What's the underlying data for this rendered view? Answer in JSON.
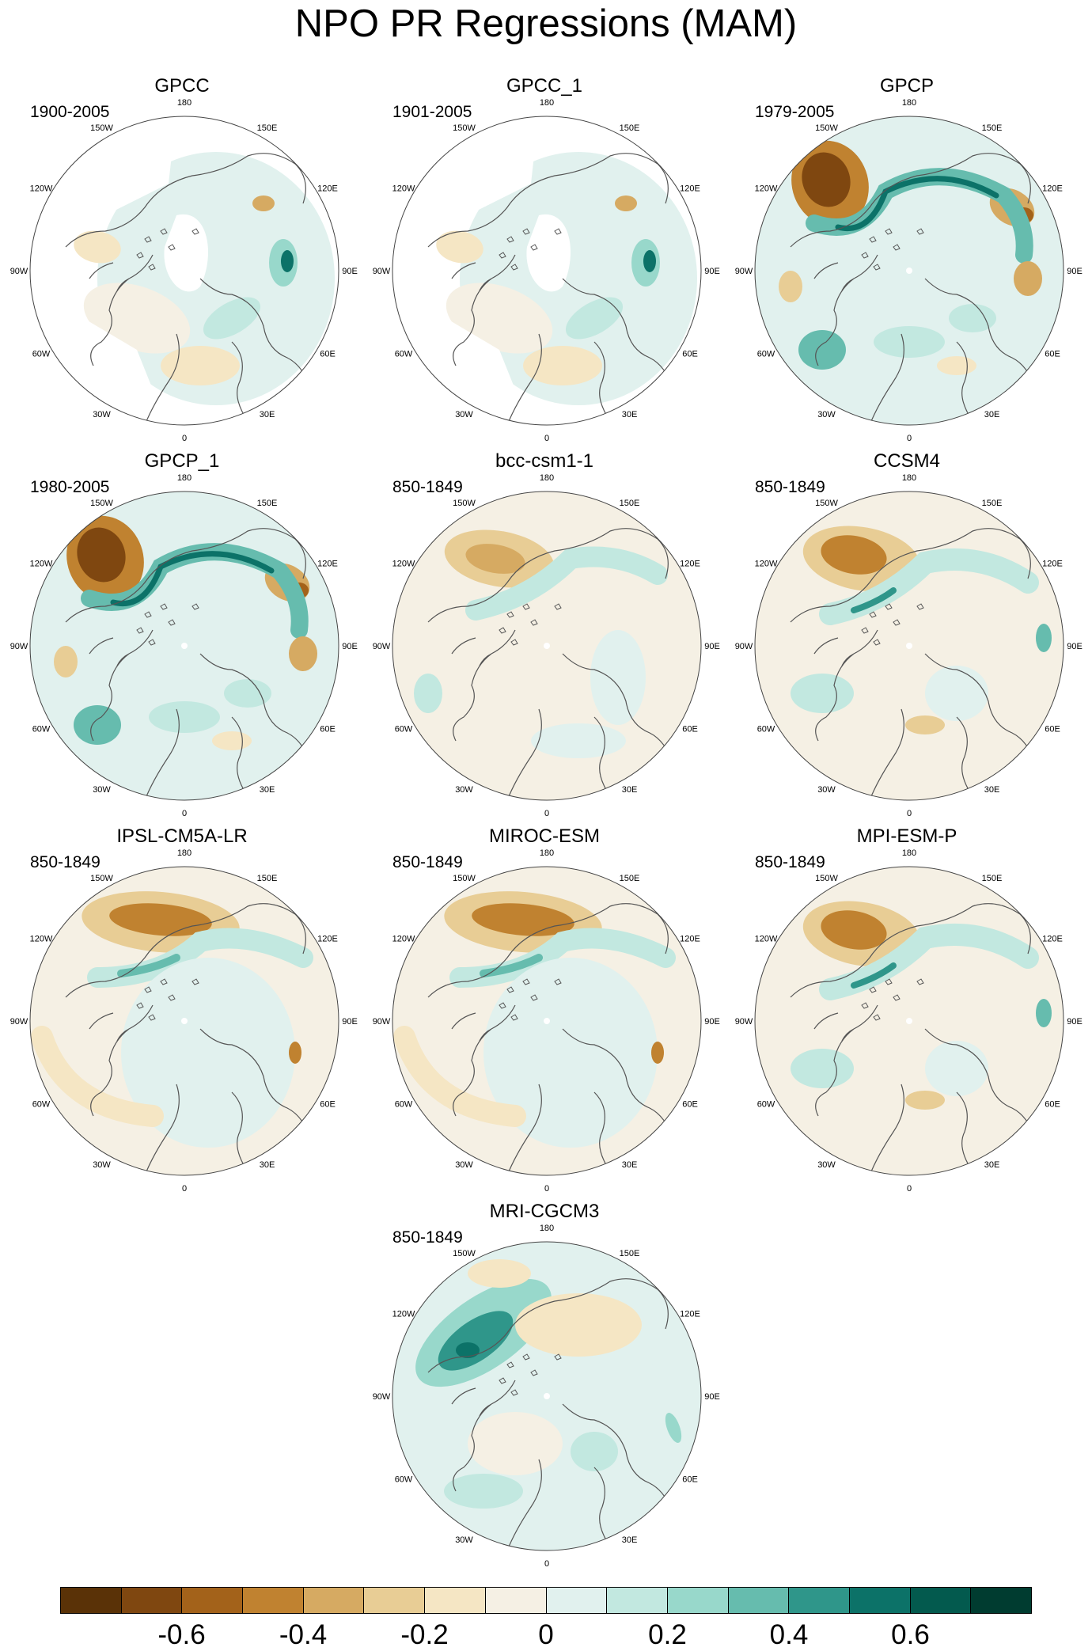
{
  "title": "NPO PR Regressions (MAM)",
  "lon_labels": [
    "180",
    "150E",
    "120E",
    "90E",
    "60E",
    "30E",
    "0",
    "30W",
    "60W",
    "90W",
    "120W",
    "150W"
  ],
  "panels": [
    {
      "title": "GPCC",
      "period": "1900-2005",
      "pattern": "obs_masked"
    },
    {
      "title": "GPCC_1",
      "period": "1901-2005",
      "pattern": "obs_masked"
    },
    {
      "title": "GPCP",
      "period": "1979-2005",
      "pattern": "obs_strong"
    },
    {
      "title": "GPCP_1",
      "period": "1980-2005",
      "pattern": "obs_strong"
    },
    {
      "title": "bcc-csm1-1",
      "period": "850-1849",
      "pattern": "model_weak"
    },
    {
      "title": "CCSM4",
      "period": "850-1849",
      "pattern": "model_medium"
    },
    {
      "title": "IPSL-CM5A-LR",
      "period": "850-1849",
      "pattern": "model_band"
    },
    {
      "title": "MIROC-ESM",
      "period": "850-1849",
      "pattern": "model_band"
    },
    {
      "title": "MPI-ESM-P",
      "period": "850-1849",
      "pattern": "model_medium"
    },
    {
      "title": "MRI-CGCM3",
      "period": "850-1849",
      "pattern": "model_wet"
    }
  ],
  "colorbar": {
    "colors": [
      "#5a3207",
      "#7f4710",
      "#a3621a",
      "#c08230",
      "#d6aa62",
      "#e8cd95",
      "#f5e6c4",
      "#f5f0e4",
      "#e1f1ee",
      "#c2e8e0",
      "#98d8cb",
      "#66bcae",
      "#2f968a",
      "#0c7268",
      "#035a4e",
      "#003c30"
    ],
    "labels": [
      "-0.6",
      "-0.4",
      "-0.2",
      "0",
      "0.2",
      "0.4",
      "0.6"
    ],
    "label_values": [
      -0.6,
      -0.4,
      -0.2,
      0,
      0.2,
      0.4,
      0.6
    ],
    "min": -0.8,
    "max": 0.8
  }
}
